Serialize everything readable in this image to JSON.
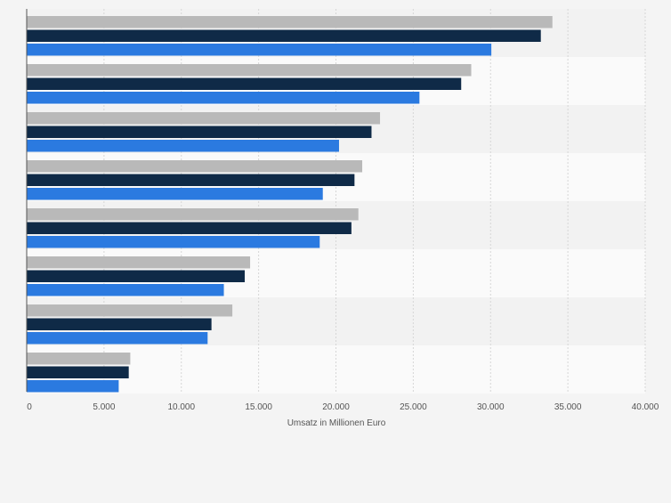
{
  "chart_data": {
    "type": "bar",
    "orientation": "horizontal",
    "categories": [
      "",
      "",
      "",
      "",
      "",
      "",
      "",
      ""
    ],
    "series": [
      {
        "color": "#b9b9b9",
        "values": [
          34000,
          28750,
          22850,
          21700,
          21450,
          14450,
          13300,
          6700
        ]
      },
      {
        "color": "#0f2a47",
        "values": [
          33250,
          28100,
          22300,
          21200,
          21000,
          14100,
          11950,
          6600
        ]
      },
      {
        "color": "#2b7ae0",
        "values": [
          30050,
          25400,
          20200,
          19150,
          18950,
          12750,
          11700,
          5950
        ]
      }
    ],
    "xlim": [
      0,
      40000
    ],
    "x_ticks": [
      "0",
      "5.000",
      "10.000",
      "15.000",
      "20.000",
      "25.000",
      "30.000",
      "35.000",
      "40.000"
    ],
    "xlabel": "Umsatz in Millionen Euro",
    "grid": "vertical-dashed",
    "legend": "none"
  }
}
